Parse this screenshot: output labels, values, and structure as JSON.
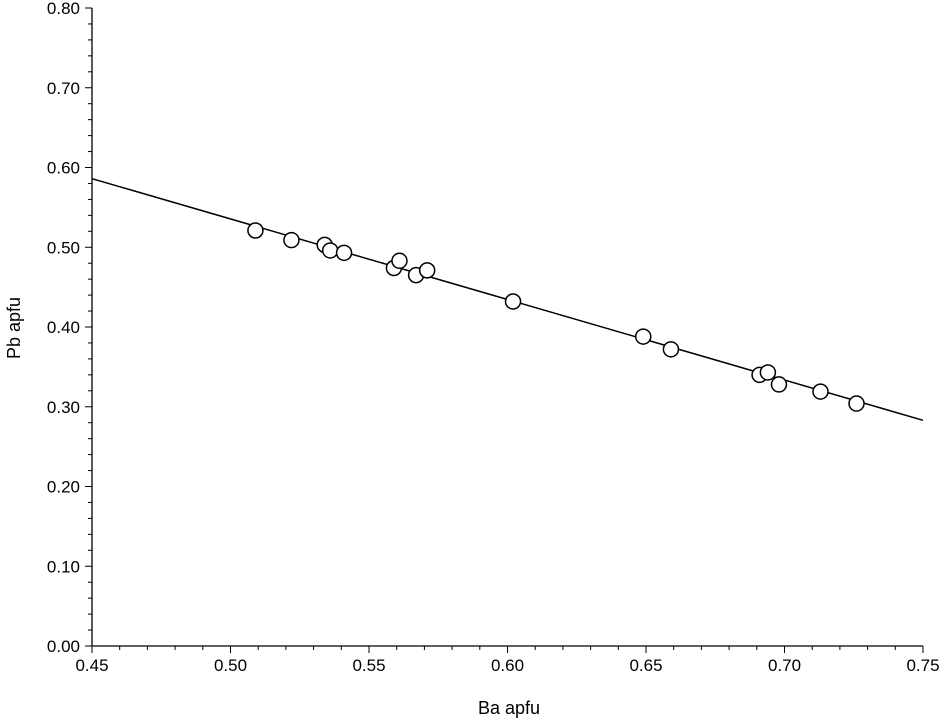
{
  "chart_data": {
    "type": "scatter",
    "title": "",
    "xlabel": "Ba apfu",
    "ylabel": "Pb apfu",
    "xlim": [
      0.45,
      0.75
    ],
    "ylim": [
      0.0,
      0.8
    ],
    "grid": false,
    "x_ticks": [
      "0.45",
      "0.50",
      "0.55",
      "0.60",
      "0.65",
      "0.70",
      "0.75"
    ],
    "y_ticks": [
      "0.00",
      "0.10",
      "0.20",
      "0.30",
      "0.40",
      "0.50",
      "0.60",
      "0.70",
      "0.80"
    ],
    "series": [
      {
        "marker": "open-circle",
        "x": [
          0.509,
          0.522,
          0.534,
          0.536,
          0.541,
          0.559,
          0.561,
          0.567,
          0.571,
          0.602,
          0.649,
          0.659,
          0.691,
          0.694,
          0.698,
          0.713,
          0.726
        ],
        "y": [
          0.521,
          0.509,
          0.503,
          0.496,
          0.493,
          0.474,
          0.483,
          0.465,
          0.471,
          0.432,
          0.388,
          0.372,
          0.34,
          0.343,
          0.328,
          0.319,
          0.304
        ]
      }
    ],
    "trendline": {
      "x": [
        0.45,
        0.75
      ],
      "y": [
        0.586,
        0.283
      ]
    }
  }
}
